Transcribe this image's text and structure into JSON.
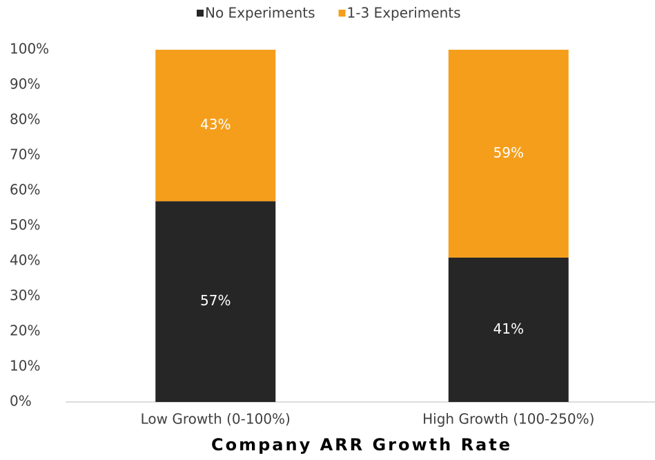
{
  "chart_data": {
    "type": "stacked_bar",
    "x_label": "Company ARR Growth Rate",
    "categories": [
      "Low Growth (0-100%)",
      "High Growth (100-250%)"
    ],
    "series": [
      {
        "name": "No Experiments",
        "color": "#262626",
        "values": [
          57,
          41
        ],
        "value_labels": [
          "57%",
          "41%"
        ]
      },
      {
        "name": "1-3 Experiments",
        "color": "#f59e1b",
        "values": [
          43,
          59
        ],
        "value_labels": [
          "43%",
          "59%"
        ]
      }
    ],
    "ylim": [
      0,
      100
    ],
    "yticks": [
      {
        "value": 0,
        "label": "0%"
      },
      {
        "value": 10,
        "label": "10%"
      },
      {
        "value": 20,
        "label": "20%"
      },
      {
        "value": 30,
        "label": "30%"
      },
      {
        "value": 40,
        "label": "40%"
      },
      {
        "value": 50,
        "label": "50%"
      },
      {
        "value": 60,
        "label": "60%"
      },
      {
        "value": 70,
        "label": "70%"
      },
      {
        "value": 80,
        "label": "80%"
      },
      {
        "value": 90,
        "label": "90%"
      },
      {
        "value": 100,
        "label": "100%"
      }
    ],
    "grid": false,
    "legend": "top"
  }
}
